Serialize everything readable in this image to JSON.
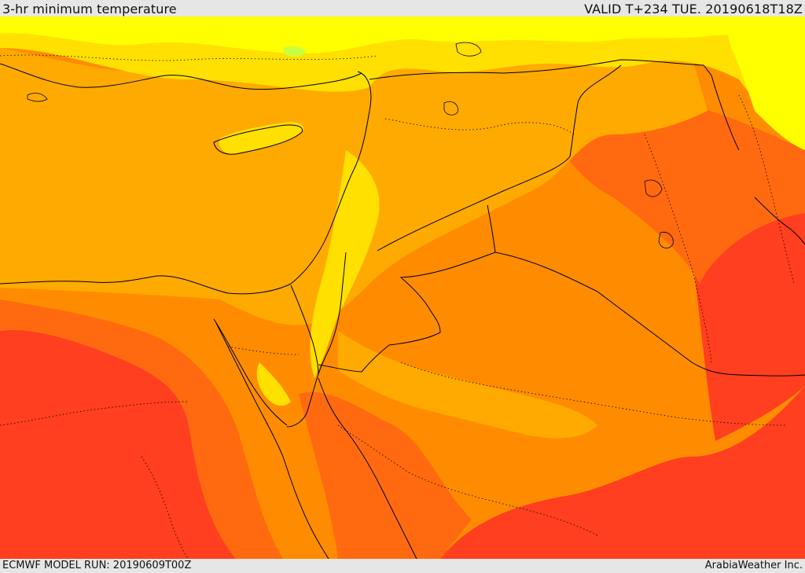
{
  "header": {
    "title": "3-hr minimum temperature",
    "valid_time": "VALID T+234 TUE. 20190618T18Z"
  },
  "footer": {
    "model_run": "ECMWF MODEL RUN: 20190609T00Z",
    "credit": "ArabiaWeather Inc."
  },
  "map": {
    "variable": "3-hr minimum temperature",
    "palette": {
      "coolest": "#ffff00",
      "cool": "#ffe000",
      "mild": "#ffaa00",
      "warm": "#ff8c00",
      "hot": "#ff6a10",
      "hottest": "#ff3f1f",
      "highland_green": "#c8ff40"
    },
    "border_color": "#000000"
  }
}
